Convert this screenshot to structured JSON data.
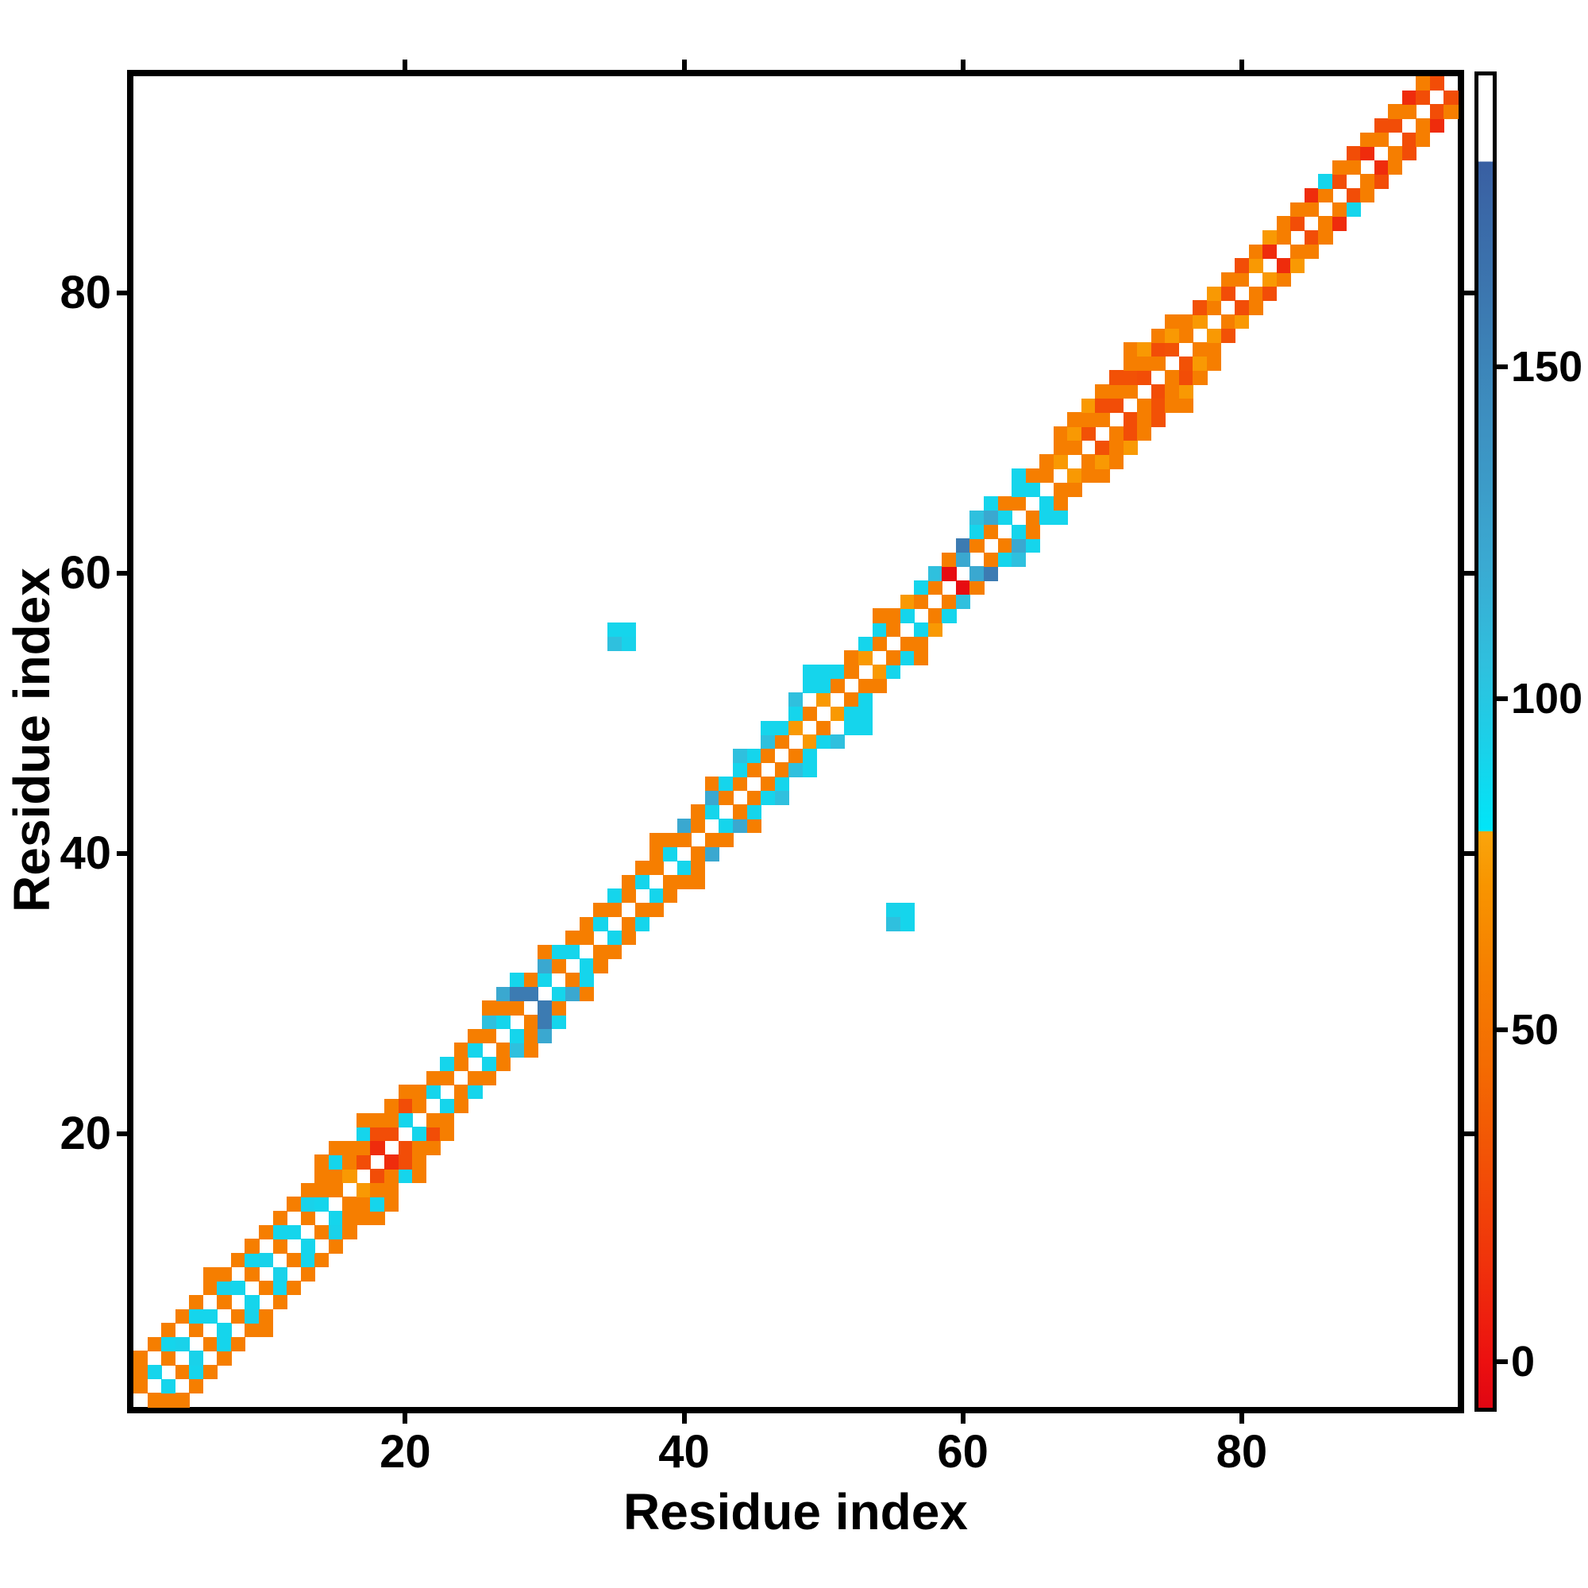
{
  "figure": {
    "background": "#ffffff"
  },
  "chart_data": {
    "type": "heatmap",
    "title": "",
    "xlabel": "Residue index",
    "ylabel": "Residue index",
    "n_residues": 95,
    "axis_range": [
      0.5,
      95.5
    ],
    "x_ticks": [
      20,
      40,
      60,
      80
    ],
    "y_ticks": [
      20,
      40,
      60,
      80
    ],
    "grid": false,
    "symmetric": true,
    "diagonal_masked": true,
    "colorbar": {
      "ticks": [
        0,
        50,
        100,
        150
      ],
      "vmin": -7,
      "vmax": 194,
      "white_above": 181,
      "position": "right"
    },
    "colormap_stops": [
      [
        -7,
        "#e00612"
      ],
      [
        0,
        "#ec1010"
      ],
      [
        15,
        "#f0330b"
      ],
      [
        30,
        "#f25106"
      ],
      [
        45,
        "#f46c02"
      ],
      [
        60,
        "#f68100"
      ],
      [
        72,
        "#f89500"
      ],
      [
        79.99,
        "#faa50c"
      ],
      [
        80,
        "#00e6f8"
      ],
      [
        92,
        "#19d2ea"
      ],
      [
        105,
        "#2fc0de"
      ],
      [
        120,
        "#3aaad2"
      ],
      [
        140,
        "#3d92c2"
      ],
      [
        160,
        "#3c78b0"
      ],
      [
        180.99,
        "#395fa2"
      ],
      [
        181,
        "#ffffff"
      ],
      [
        194,
        "#ffffff"
      ]
    ],
    "cells": [
      [
        1,
        2,
        58
      ],
      [
        1,
        3,
        58
      ],
      [
        1,
        4,
        58
      ],
      [
        2,
        3,
        90
      ],
      [
        2,
        5,
        58
      ],
      [
        3,
        4,
        58
      ],
      [
        3,
        5,
        90
      ],
      [
        3,
        6,
        58
      ],
      [
        4,
        5,
        92
      ],
      [
        4,
        7,
        58
      ],
      [
        5,
        6,
        58
      ],
      [
        5,
        7,
        90
      ],
      [
        5,
        8,
        58
      ],
      [
        6,
        7,
        90
      ],
      [
        6,
        9,
        58
      ],
      [
        6,
        10,
        58
      ],
      [
        7,
        8,
        58
      ],
      [
        7,
        9,
        92
      ],
      [
        7,
        10,
        58
      ],
      [
        8,
        9,
        90
      ],
      [
        8,
        11,
        58
      ],
      [
        9,
        10,
        58
      ],
      [
        9,
        11,
        90
      ],
      [
        9,
        12,
        58
      ],
      [
        10,
        11,
        92
      ],
      [
        10,
        13,
        58
      ],
      [
        11,
        12,
        58
      ],
      [
        11,
        13,
        90
      ],
      [
        11,
        14,
        58
      ],
      [
        12,
        13,
        90
      ],
      [
        12,
        15,
        58
      ],
      [
        13,
        14,
        58
      ],
      [
        13,
        15,
        92
      ],
      [
        13,
        16,
        58
      ],
      [
        14,
        15,
        90
      ],
      [
        14,
        16,
        58
      ],
      [
        14,
        17,
        58
      ],
      [
        14,
        18,
        58
      ],
      [
        15,
        16,
        58
      ],
      [
        15,
        17,
        58
      ],
      [
        15,
        18,
        90
      ],
      [
        15,
        19,
        58
      ],
      [
        16,
        17,
        74
      ],
      [
        16,
        18,
        58
      ],
      [
        16,
        19,
        58
      ],
      [
        17,
        18,
        28
      ],
      [
        17,
        19,
        58
      ],
      [
        17,
        20,
        90
      ],
      [
        17,
        21,
        58
      ],
      [
        18,
        19,
        12
      ],
      [
        18,
        20,
        28
      ],
      [
        18,
        21,
        58
      ],
      [
        19,
        20,
        28
      ],
      [
        19,
        21,
        58
      ],
      [
        19,
        22,
        58
      ],
      [
        20,
        21,
        90
      ],
      [
        20,
        22,
        28
      ],
      [
        20,
        23,
        58
      ],
      [
        21,
        22,
        58
      ],
      [
        21,
        23,
        58
      ],
      [
        22,
        23,
        90
      ],
      [
        22,
        24,
        58
      ],
      [
        23,
        24,
        58
      ],
      [
        23,
        25,
        90
      ],
      [
        24,
        25,
        58
      ],
      [
        24,
        26,
        58
      ],
      [
        25,
        26,
        90
      ],
      [
        25,
        27,
        58
      ],
      [
        26,
        27,
        58
      ],
      [
        26,
        28,
        105
      ],
      [
        26,
        29,
        58
      ],
      [
        27,
        28,
        90
      ],
      [
        27,
        29,
        58
      ],
      [
        27,
        30,
        122
      ],
      [
        28,
        29,
        58
      ],
      [
        28,
        30,
        158
      ],
      [
        28,
        31,
        90
      ],
      [
        29,
        30,
        158
      ],
      [
        29,
        31,
        58
      ],
      [
        30,
        31,
        90
      ],
      [
        30,
        32,
        122
      ],
      [
        30,
        33,
        58
      ],
      [
        31,
        32,
        58
      ],
      [
        31,
        33,
        90
      ],
      [
        32,
        33,
        90
      ],
      [
        32,
        34,
        58
      ],
      [
        33,
        34,
        58
      ],
      [
        33,
        35,
        58
      ],
      [
        34,
        35,
        90
      ],
      [
        34,
        36,
        58
      ],
      [
        35,
        36,
        58
      ],
      [
        35,
        37,
        90
      ],
      [
        35,
        55,
        105
      ],
      [
        35,
        56,
        90
      ],
      [
        36,
        37,
        58
      ],
      [
        36,
        38,
        58
      ],
      [
        36,
        55,
        92
      ],
      [
        36,
        56,
        90
      ],
      [
        37,
        38,
        90
      ],
      [
        37,
        39,
        58
      ],
      [
        38,
        39,
        58
      ],
      [
        38,
        40,
        58
      ],
      [
        38,
        41,
        58
      ],
      [
        39,
        40,
        90
      ],
      [
        39,
        41,
        58
      ],
      [
        40,
        41,
        58
      ],
      [
        40,
        42,
        122
      ],
      [
        41,
        42,
        58
      ],
      [
        41,
        43,
        58
      ],
      [
        42,
        43,
        90
      ],
      [
        42,
        44,
        122
      ],
      [
        42,
        45,
        58
      ],
      [
        43,
        44,
        58
      ],
      [
        43,
        45,
        90
      ],
      [
        44,
        45,
        58
      ],
      [
        44,
        46,
        90
      ],
      [
        44,
        47,
        105
      ],
      [
        45,
        46,
        58
      ],
      [
        45,
        47,
        90
      ],
      [
        46,
        47,
        58
      ],
      [
        46,
        48,
        105
      ],
      [
        46,
        49,
        90
      ],
      [
        47,
        48,
        58
      ],
      [
        47,
        49,
        90
      ],
      [
        48,
        49,
        74
      ],
      [
        48,
        50,
        90
      ],
      [
        48,
        51,
        105
      ],
      [
        49,
        50,
        58
      ],
      [
        49,
        52,
        90
      ],
      [
        49,
        53,
        90
      ],
      [
        50,
        51,
        74
      ],
      [
        50,
        52,
        90
      ],
      [
        50,
        53,
        90
      ],
      [
        51,
        52,
        58
      ],
      [
        51,
        53,
        90
      ],
      [
        52,
        53,
        58
      ],
      [
        52,
        54,
        58
      ],
      [
        53,
        54,
        74
      ],
      [
        53,
        55,
        90
      ],
      [
        54,
        55,
        58
      ],
      [
        54,
        56,
        90
      ],
      [
        54,
        57,
        58
      ],
      [
        55,
        56,
        58
      ],
      [
        55,
        57,
        58
      ],
      [
        56,
        57,
        90
      ],
      [
        56,
        58,
        74
      ],
      [
        57,
        58,
        58
      ],
      [
        57,
        59,
        90
      ],
      [
        58,
        59,
        58
      ],
      [
        58,
        60,
        105
      ],
      [
        59,
        60,
        -3
      ],
      [
        59,
        61,
        58
      ],
      [
        60,
        61,
        122
      ],
      [
        60,
        62,
        158
      ],
      [
        61,
        62,
        58
      ],
      [
        61,
        63,
        90
      ],
      [
        61,
        64,
        105
      ],
      [
        62,
        63,
        58
      ],
      [
        62,
        64,
        122
      ],
      [
        62,
        65,
        90
      ],
      [
        63,
        64,
        90
      ],
      [
        63,
        65,
        58
      ],
      [
        64,
        65,
        58
      ],
      [
        64,
        66,
        90
      ],
      [
        64,
        67,
        90
      ],
      [
        65,
        66,
        90
      ],
      [
        65,
        67,
        58
      ],
      [
        66,
        67,
        58
      ],
      [
        66,
        68,
        58
      ],
      [
        67,
        68,
        74
      ],
      [
        67,
        69,
        58
      ],
      [
        67,
        70,
        58
      ],
      [
        68,
        69,
        58
      ],
      [
        68,
        70,
        74
      ],
      [
        68,
        71,
        58
      ],
      [
        69,
        70,
        30
      ],
      [
        69,
        71,
        58
      ],
      [
        69,
        72,
        74
      ],
      [
        70,
        71,
        58
      ],
      [
        70,
        72,
        28
      ],
      [
        70,
        73,
        58
      ],
      [
        71,
        72,
        28
      ],
      [
        71,
        73,
        58
      ],
      [
        71,
        74,
        30
      ],
      [
        72,
        73,
        58
      ],
      [
        72,
        74,
        30
      ],
      [
        72,
        75,
        58
      ],
      [
        72,
        76,
        58
      ],
      [
        73,
        74,
        28
      ],
      [
        73,
        75,
        58
      ],
      [
        73,
        76,
        74
      ],
      [
        74,
        75,
        58
      ],
      [
        74,
        76,
        28
      ],
      [
        74,
        77,
        58
      ],
      [
        75,
        76,
        30
      ],
      [
        75,
        77,
        74
      ],
      [
        75,
        78,
        58
      ],
      [
        76,
        77,
        58
      ],
      [
        76,
        78,
        58
      ],
      [
        77,
        78,
        74
      ],
      [
        77,
        79,
        30
      ],
      [
        78,
        79,
        58
      ],
      [
        78,
        80,
        74
      ],
      [
        79,
        80,
        28
      ],
      [
        79,
        81,
        58
      ],
      [
        80,
        81,
        58
      ],
      [
        80,
        82,
        28
      ],
      [
        81,
        82,
        74
      ],
      [
        81,
        83,
        58
      ],
      [
        82,
        83,
        12
      ],
      [
        82,
        84,
        74
      ],
      [
        83,
        84,
        58
      ],
      [
        83,
        85,
        58
      ],
      [
        84,
        85,
        28
      ],
      [
        84,
        86,
        58
      ],
      [
        85,
        86,
        58
      ],
      [
        85,
        87,
        12
      ],
      [
        86,
        87,
        58
      ],
      [
        86,
        88,
        90
      ],
      [
        87,
        88,
        28
      ],
      [
        87,
        89,
        58
      ],
      [
        88,
        89,
        58
      ],
      [
        88,
        90,
        28
      ],
      [
        89,
        90,
        12
      ],
      [
        89,
        91,
        58
      ],
      [
        90,
        91,
        58
      ],
      [
        90,
        92,
        28
      ],
      [
        91,
        92,
        28
      ],
      [
        91,
        93,
        58
      ],
      [
        92,
        93,
        58
      ],
      [
        92,
        94,
        12
      ],
      [
        93,
        94,
        28
      ],
      [
        93,
        95,
        58
      ],
      [
        94,
        95,
        28
      ]
    ]
  }
}
